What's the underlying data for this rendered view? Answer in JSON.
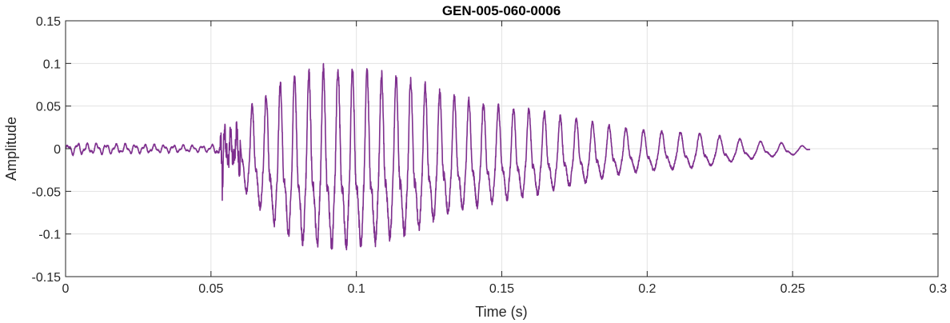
{
  "chart_data": {
    "type": "line",
    "title": "GEN-005-060-0006",
    "xlabel": "Time (s)",
    "ylabel": "Amplitude",
    "xlim": [
      0,
      0.3
    ],
    "ylim": [
      -0.15,
      0.15
    ],
    "xticks": [
      0,
      0.05,
      0.1,
      0.15,
      0.2,
      0.25,
      0.3
    ],
    "xtick_labels": [
      "0",
      "0.05",
      "0.1",
      "0.15",
      "0.2",
      "0.25",
      "0.3"
    ],
    "yticks": [
      -0.15,
      -0.1,
      -0.05,
      0,
      0.05,
      0.1,
      0.15
    ],
    "ytick_labels": [
      "-0.15",
      "-0.1",
      "-0.05",
      "0",
      "0.05",
      "0.1",
      "0.15"
    ],
    "grid": true,
    "series": [
      {
        "color": "#7E2F8E",
        "x": [
          0,
          0.003,
          0.0055,
          0.05,
          0.053,
          0.0537,
          0.0542,
          0.0548,
          0.0555,
          0.0565,
          0.058,
          0.06,
          0.062,
          0.065,
          0.068,
          0.07,
          0.075,
          0.08,
          0.085,
          0.088,
          0.092,
          0.095,
          0.1,
          0.105,
          0.11,
          0.115,
          0.12,
          0.125,
          0.13,
          0.135,
          0.14,
          0.145,
          0.15,
          0.16,
          0.17,
          0.18,
          0.19,
          0.2,
          0.21,
          0.22,
          0.23,
          0.24,
          0.25,
          0.256
        ],
        "amplitude": [
          0.004,
          0.008,
          0.007,
          0.004,
          0.01,
          0.055,
          0.035,
          0.028,
          0.022,
          0.022,
          0.025,
          0.03,
          0.055,
          0.072,
          0.078,
          0.09,
          0.105,
          0.118,
          0.121,
          0.124,
          0.125,
          0.125,
          0.122,
          0.12,
          0.115,
          0.11,
          0.105,
          0.095,
          0.085,
          0.08,
          0.075,
          0.07,
          0.065,
          0.06,
          0.05,
          0.042,
          0.033,
          0.028,
          0.026,
          0.023,
          0.016,
          0.011,
          0.008,
          0.002
        ],
        "period": [
          0.0033,
          0.0033,
          0.0033,
          0.0033,
          0.0033,
          0.0033,
          0.0033,
          0.0033,
          0.0033,
          0.0033,
          0.0033,
          0.0045,
          0.0047,
          0.0048,
          0.0048,
          0.0049,
          0.0049,
          0.0049,
          0.005,
          0.005,
          0.005,
          0.005,
          0.005,
          0.005,
          0.005,
          0.005,
          0.005,
          0.005,
          0.005,
          0.005,
          0.005,
          0.0051,
          0.0052,
          0.0053,
          0.0055,
          0.0056,
          0.0058,
          0.0062,
          0.0065,
          0.0068,
          0.007,
          0.0072,
          0.0072,
          0.0072
        ]
      }
    ]
  }
}
